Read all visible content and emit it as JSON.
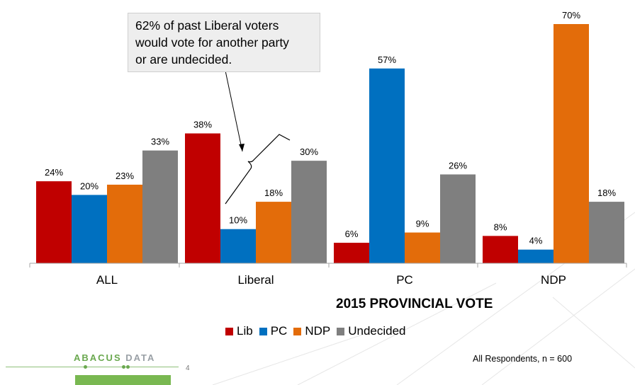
{
  "chart_data": {
    "type": "bar",
    "categories": [
      "ALL",
      "Liberal",
      "PC",
      "NDP"
    ],
    "series": [
      {
        "name": "Lib",
        "color": "#c00000",
        "values": [
          24,
          38,
          6,
          8
        ]
      },
      {
        "name": "PC",
        "color": "#0070c0",
        "values": [
          20,
          10,
          57,
          4
        ]
      },
      {
        "name": "NDP",
        "color": "#e36c0a",
        "values": [
          23,
          18,
          9,
          70
        ]
      },
      {
        "name": "Undecided",
        "color": "#7f7f7f",
        "values": [
          33,
          30,
          26,
          18
        ]
      }
    ],
    "value_suffix": "%",
    "xlabel": "2015 PROVINCIAL VOTE",
    "ylim": [
      0,
      70
    ],
    "grid": false,
    "legend_position": "bottom"
  },
  "callout": {
    "line1": "62% of past Liberal voters",
    "line2": "would vote for another party",
    "line3": "or are undecided."
  },
  "footnote": "All Respondents, n = 600",
  "logo": {
    "part1": "ABACUS",
    "part2": "DATA"
  },
  "page_number": "4"
}
